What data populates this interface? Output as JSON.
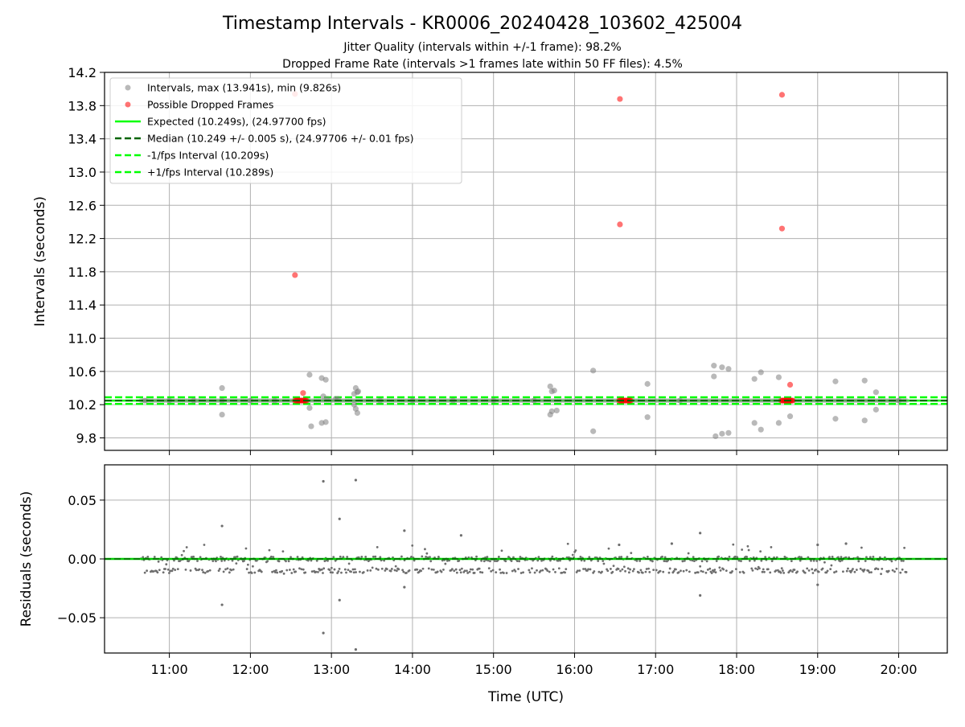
{
  "chart_data": [
    {
      "type": "scatter",
      "title": "Timestamp Intervals - KR0006_20240428_103602_425004",
      "subtitle_lines": [
        "Jitter Quality (intervals within +/-1 frame): 98.2%",
        "Dropped Frame Rate (intervals >1 frames late within 50 FF files): 4.5%"
      ],
      "ylabel": "Intervals (seconds)",
      "xlim": [
        10.2,
        20.6
      ],
      "ylim": [
        9.65,
        14.2
      ],
      "yticks": [
        9.8,
        10.2,
        10.6,
        11.0,
        11.4,
        11.8,
        12.2,
        12.6,
        13.0,
        13.4,
        13.8,
        14.2
      ],
      "ytick_labels": [
        "9.8",
        "10.2",
        "10.6",
        "11.0",
        "11.4",
        "11.8",
        "12.2",
        "12.6",
        "13.0",
        "13.4",
        "13.8",
        "14.2"
      ],
      "grid": true,
      "legend_position": "top-left",
      "legend": [
        "Intervals, max (13.941s), min (9.826s)",
        "Possible Dropped Frames",
        "Expected (10.249s), (24.97700 fps)",
        "Median (10.249 +/- 0.005 s), (24.97706 +/- 0.01 fps)",
        "-1/fps Interval (10.209s)",
        "+1/fps Interval (10.289s)"
      ],
      "colors": {
        "intervals": "#808080",
        "dropped": "#ff0000",
        "expected": "#00ff00",
        "median": "#006400",
        "fps_band": "#00ff00"
      },
      "lines": {
        "expected": 10.249,
        "median": 10.249,
        "minus_fps": 10.209,
        "plus_fps": 10.289
      },
      "series": [
        {
          "name": "Intervals, max (13.941s), min (9.826s)",
          "x": [
            10.7,
            11.0,
            11.3,
            11.65,
            11.65,
            11.65,
            12.0,
            12.3,
            12.73,
            12.75,
            12.88,
            12.93,
            12.9,
            12.95,
            12.6,
            12.73,
            12.88,
            12.93,
            13.05,
            13.08,
            13.28,
            13.3,
            13.32,
            13.3,
            13.32,
            13.28,
            13.33,
            13.6,
            14.0,
            14.5,
            15.0,
            15.5,
            15.7,
            15.72,
            15.75,
            15.72,
            15.7,
            15.78,
            16.23,
            16.23,
            16.9,
            16.9,
            17.3,
            17.72,
            17.72,
            17.74,
            17.82,
            17.9,
            17.82,
            17.9,
            18.22,
            18.3,
            18.22,
            18.3,
            18.52,
            18.52,
            18.66,
            19.22,
            19.22,
            19.58,
            19.58,
            19.72,
            19.72,
            20.0
          ],
          "y": [
            10.249,
            10.249,
            10.249,
            10.4,
            10.08,
            10.249,
            10.249,
            10.249,
            10.56,
            9.94,
            10.52,
            10.5,
            10.3,
            10.27,
            10.249,
            10.16,
            9.98,
            9.99,
            10.27,
            10.27,
            10.33,
            10.4,
            10.35,
            10.15,
            10.1,
            10.2,
            10.36,
            10.249,
            10.249,
            10.249,
            10.249,
            10.249,
            10.42,
            10.36,
            10.37,
            10.12,
            10.08,
            10.13,
            10.61,
            9.88,
            10.45,
            10.05,
            10.249,
            10.67,
            10.54,
            9.82,
            10.65,
            10.63,
            9.85,
            9.86,
            10.51,
            10.59,
            9.98,
            9.9,
            10.53,
            9.98,
            10.06,
            10.48,
            10.03,
            10.49,
            10.01,
            10.35,
            10.14,
            10.249
          ]
        },
        {
          "name": "Possible Dropped Frames",
          "x": [
            12.55,
            12.55,
            12.65,
            16.56,
            16.56,
            18.56,
            18.56,
            18.66
          ],
          "y": [
            11.76,
            13.94,
            10.34,
            13.88,
            12.37,
            13.93,
            12.32,
            10.44
          ]
        }
      ]
    },
    {
      "type": "scatter",
      "xlabel": "Time (UTC)",
      "ylabel": "Residuals (seconds)",
      "xlim": [
        10.2,
        20.6
      ],
      "ylim": [
        -0.08,
        0.08
      ],
      "yticks": [
        -0.05,
        0.0,
        0.05
      ],
      "ytick_labels": [
        "−0.05",
        "0.00",
        "0.05"
      ],
      "xticks": [
        11,
        12,
        13,
        14,
        15,
        16,
        17,
        18,
        19,
        20
      ],
      "xtick_labels": [
        "11:00",
        "12:00",
        "13:00",
        "14:00",
        "15:00",
        "16:00",
        "17:00",
        "18:00",
        "19:00",
        "20:00"
      ],
      "grid": true,
      "data_range": [
        10.65,
        20.1
      ],
      "band_levels": [
        0.0,
        -0.01
      ],
      "colors": {
        "points": "#6e6e6e",
        "zero_line": "#00cc00",
        "zero_dash": "#006400"
      },
      "outliers": {
        "x": [
          12.9,
          13.3,
          13.1,
          12.9,
          13.1,
          13.3,
          11.65,
          11.65,
          13.9,
          13.9,
          14.6,
          17.55,
          17.55,
          19.0,
          19.0,
          19.35,
          16.55,
          17.2
        ],
        "y": [
          0.066,
          0.067,
          0.034,
          -0.063,
          -0.035,
          -0.077,
          0.028,
          -0.039,
          0.024,
          -0.024,
          0.02,
          0.022,
          -0.031,
          0.012,
          -0.022,
          0.013,
          0.012,
          0.013
        ]
      }
    }
  ]
}
